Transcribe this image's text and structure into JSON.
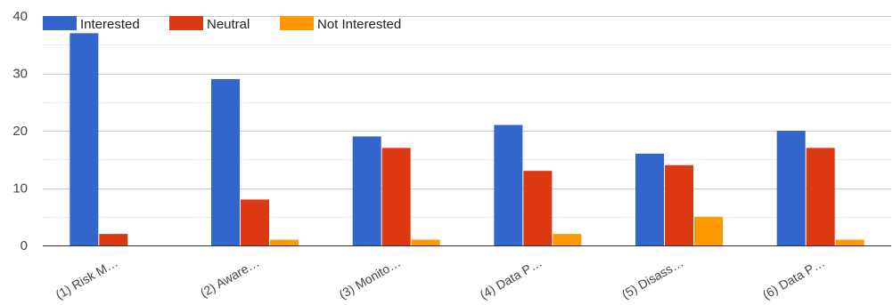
{
  "chart_data": {
    "type": "bar",
    "title": "",
    "xlabel": "",
    "ylabel": "",
    "categories": [
      "(1) Risk M…",
      "(2) Aware…",
      "(3) Monito…",
      "(4) Data P…",
      "(5) Disass…",
      "(6) Data P…"
    ],
    "series": [
      {
        "name": "Interested",
        "color": "#3366cc",
        "values": [
          37,
          29,
          19,
          21,
          16,
          20
        ]
      },
      {
        "name": "Neutral",
        "color": "#dc3912",
        "values": [
          2,
          8,
          17,
          13,
          14,
          17
        ]
      },
      {
        "name": "Not Interested",
        "color": "#ff9900",
        "values": [
          0,
          1,
          1,
          2,
          5,
          1
        ]
      }
    ],
    "ylim": [
      0,
      40
    ],
    "yticks": [
      0,
      10,
      20,
      30,
      40
    ],
    "grid": true,
    "legend_position": "top-left"
  }
}
